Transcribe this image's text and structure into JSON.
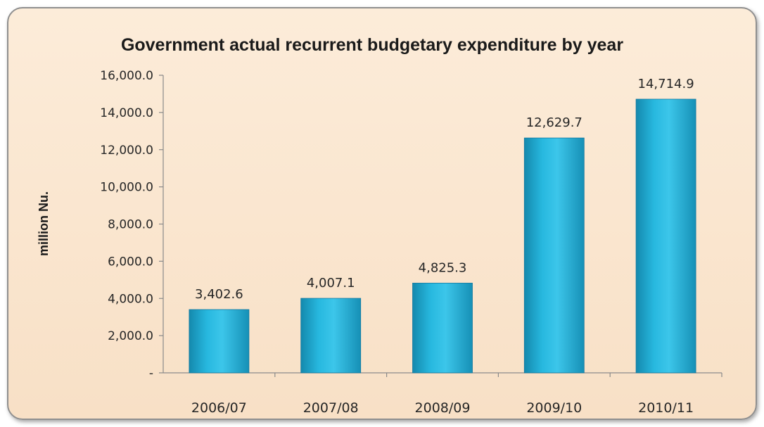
{
  "chart_data": {
    "type": "bar",
    "title": "Government actual recurrent budgetary expenditure by year",
    "xlabel": "",
    "ylabel": "million Nu.",
    "categories": [
      "2006/07",
      "2007/08",
      "2008/09",
      "2009/10",
      "2010/11"
    ],
    "values": [
      3402.6,
      4007.1,
      4825.3,
      12629.7,
      14714.9
    ],
    "value_labels": [
      "3,402.6",
      "4,007.1",
      "4,825.3",
      "12,629.7",
      "14,714.9"
    ],
    "ylim": [
      0,
      16000
    ],
    "yticks": [
      0,
      2000,
      4000,
      6000,
      8000,
      10000,
      12000,
      14000,
      16000
    ],
    "ytick_labels": [
      "-",
      "2,000.0",
      "4,000.0",
      "6,000.0",
      "8,000.0",
      "10,000.0",
      "12,000.0",
      "14,000.0",
      "16,000.0"
    ],
    "grid": false,
    "legend": "none",
    "bar_color": "#1fa9d0"
  }
}
